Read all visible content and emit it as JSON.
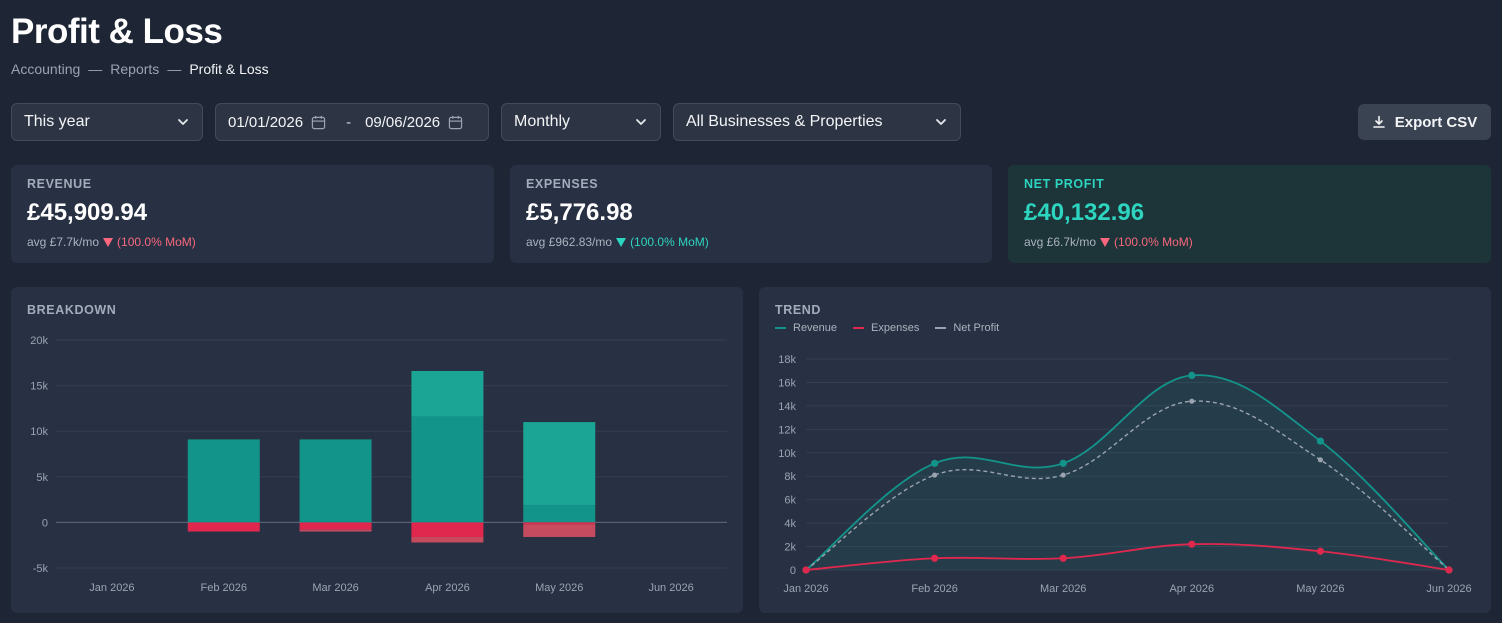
{
  "header": {
    "title": "Profit & Loss",
    "breadcrumb": [
      "Accounting",
      "Reports",
      "Profit & Loss"
    ],
    "separator": "—"
  },
  "filters": {
    "period": "This year",
    "date_from": "01/01/2026",
    "date_to": "09/06/2026",
    "date_separator": "-",
    "granularity": "Monthly",
    "scope": "All Businesses & Properties"
  },
  "toolbar": {
    "export_label": "Export CSV"
  },
  "kpis": {
    "revenue": {
      "label": "REVENUE",
      "value": "£45,909.94",
      "avg": "avg £7.7k/mo",
      "mom": "(100.0% MoM)"
    },
    "expenses": {
      "label": "EXPENSES",
      "value": "£5,776.98",
      "avg": "avg £962.83/mo",
      "mom": "(100.0% MoM)"
    },
    "net_profit": {
      "label": "NET PROFIT",
      "value": "£40,132.96",
      "avg": "avg £6.7k/mo",
      "mom": "(100.0% MoM)"
    }
  },
  "colors": {
    "revenue": "#13948a",
    "revenue_light": "#1aa595",
    "expenses": "#e0274d",
    "expenses_light": "#c74b5f",
    "net_profit": "#9aa3af",
    "accent": "#2dd4bf",
    "negative": "#f8677d"
  },
  "chart_data": [
    {
      "type": "bar",
      "title": "BREAKDOWN",
      "categories": [
        "Jan 2026",
        "Feb 2026",
        "Mar 2026",
        "Apr 2026",
        "May 2026",
        "Jun 2026"
      ],
      "ylim": [
        -5000,
        20000
      ],
      "yticks": [
        -5000,
        0,
        5000,
        10000,
        15000,
        20000
      ],
      "ytick_labels": [
        "-5k",
        "0",
        "5k",
        "10k",
        "15k",
        "20k"
      ],
      "grid": true,
      "stacked": true,
      "series": [
        {
          "values": [
            0,
            9100,
            9100,
            11600,
            1900,
            0
          ]
        },
        {
          "values": [
            0,
            0,
            0,
            5000,
            9100,
            0
          ]
        },
        {
          "values": [
            0,
            -1000,
            -800,
            -1600,
            -200,
            0
          ]
        },
        {
          "values": [
            0,
            0,
            -200,
            -600,
            -1400,
            0
          ]
        }
      ]
    },
    {
      "type": "line",
      "title": "TREND",
      "legend": "top-left",
      "categories": [
        "Jan 2026",
        "Feb 2026",
        "Mar 2026",
        "Apr 2026",
        "May 2026",
        "Jun 2026"
      ],
      "ylim": [
        0,
        18000
      ],
      "yticks": [
        0,
        2000,
        4000,
        6000,
        8000,
        10000,
        12000,
        14000,
        16000,
        18000
      ],
      "ytick_labels": [
        "0",
        "2k",
        "4k",
        "6k",
        "8k",
        "10k",
        "12k",
        "14k",
        "16k",
        "18k"
      ],
      "grid": true,
      "series": [
        {
          "name": "Revenue",
          "values": [
            0,
            9100,
            9100,
            16600,
            11000,
            0
          ]
        },
        {
          "name": "Expenses",
          "values": [
            0,
            1000,
            1000,
            2200,
            1600,
            0
          ]
        },
        {
          "name": "Net Profit",
          "values": [
            0,
            8100,
            8100,
            14400,
            9400,
            0
          ]
        }
      ]
    }
  ]
}
